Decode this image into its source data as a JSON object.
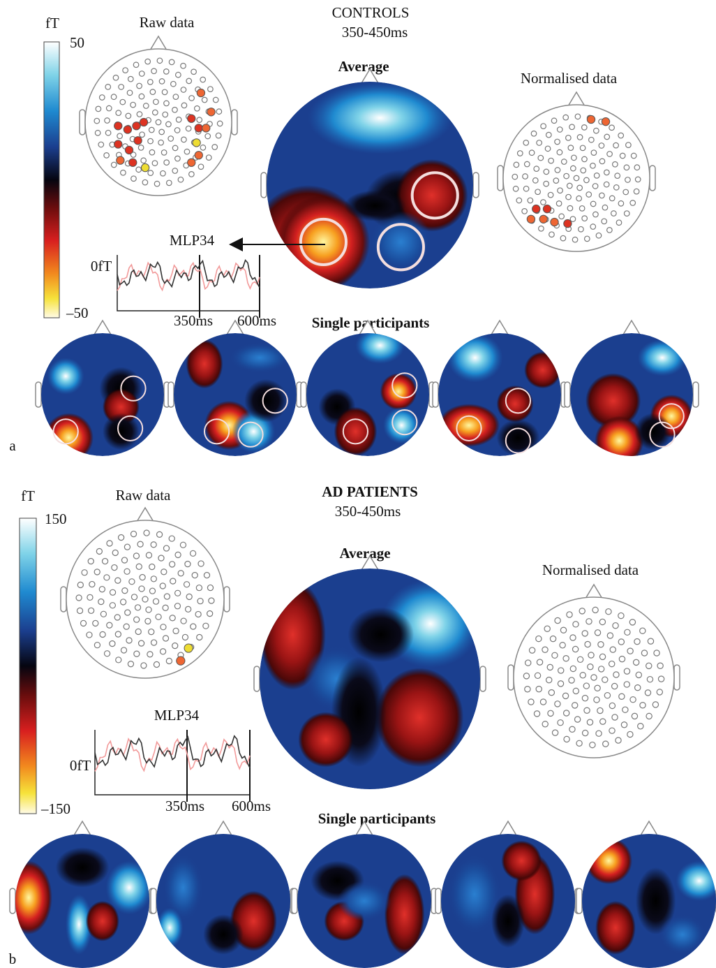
{
  "panels": [
    {
      "label": "a",
      "group_title": "CONTROLS",
      "time_window": "350-450ms",
      "colorbar": {
        "unit": "fT",
        "max": "50",
        "min": "–50"
      },
      "raw_title": "Raw data",
      "average_title": "Average",
      "normalised_title": "Normalised data",
      "sensor": "MLP34",
      "trace": {
        "zero": "0fT",
        "t1": "350ms",
        "t2": "600ms"
      },
      "singles_title": "Single participants"
    },
    {
      "label": "b",
      "group_title": "AD PATIENTS",
      "time_window": "350-450ms",
      "colorbar": {
        "unit": "fT",
        "max": "150",
        "min": "–150"
      },
      "raw_title": "Raw data",
      "average_title": "Average",
      "normalised_title": "Normalised data",
      "sensor": "MLP34",
      "trace": {
        "zero": "0fT",
        "t1": "350ms",
        "t2": "600ms"
      },
      "singles_title": "Single participants"
    }
  ]
}
